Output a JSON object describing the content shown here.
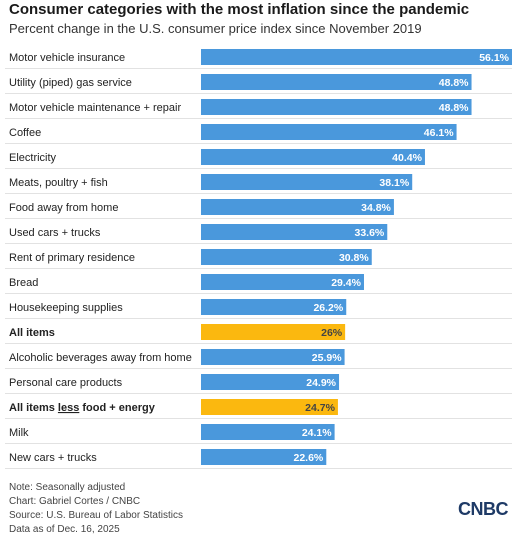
{
  "header": {
    "title": "Consumer categories with the most inflation since the pandemic",
    "subtitle": "Percent change in the U.S. consumer price index since November 2019"
  },
  "colors": {
    "bar": "#4a98dc",
    "highlight": "#fbb80f",
    "gridline": "#e2e2e2"
  },
  "chart_data": {
    "type": "bar",
    "orientation": "horizontal",
    "xlim": [
      0,
      56.1
    ],
    "categories": [
      "Motor vehicle insurance",
      "Utility (piped) gas service",
      "Motor vehicle maintenance + repair",
      "Coffee",
      "Electricity",
      "Meats, poultry + fish",
      "Food away from home",
      "Used cars + trucks",
      "Rent of primary residence",
      "Bread",
      "Housekeeping supplies",
      "All items",
      "Alcoholic beverages away from home",
      "Personal care products",
      "All items less food + energy",
      "Milk",
      "New cars + trucks"
    ],
    "values": [
      56.1,
      48.8,
      48.8,
      46.1,
      40.4,
      38.1,
      34.8,
      33.6,
      30.8,
      29.4,
      26.2,
      26,
      25.9,
      24.9,
      24.7,
      24.1,
      22.6
    ],
    "labels": [
      "56.1%",
      "48.8%",
      "48.8%",
      "46.1%",
      "40.4%",
      "38.1%",
      "34.8%",
      "33.6%",
      "30.8%",
      "29.4%",
      "26.2%",
      "26%",
      "25.9%",
      "24.9%",
      "24.7%",
      "24.1%",
      "22.6%"
    ],
    "highlighted": [
      "All items",
      "All items less food + energy"
    ],
    "category_parts": {
      "All items less food + energy": [
        "All items ",
        "less",
        " food + energy"
      ]
    }
  },
  "footer": {
    "note": "Note: Seasonally adjusted",
    "chart_credit": "Chart: Gabriel Cortes / CNBC",
    "source": "Source: U.S. Bureau of Labor Statistics",
    "data_as_of": "Data as of Dec. 16, 2025",
    "logo": "CNBC"
  }
}
